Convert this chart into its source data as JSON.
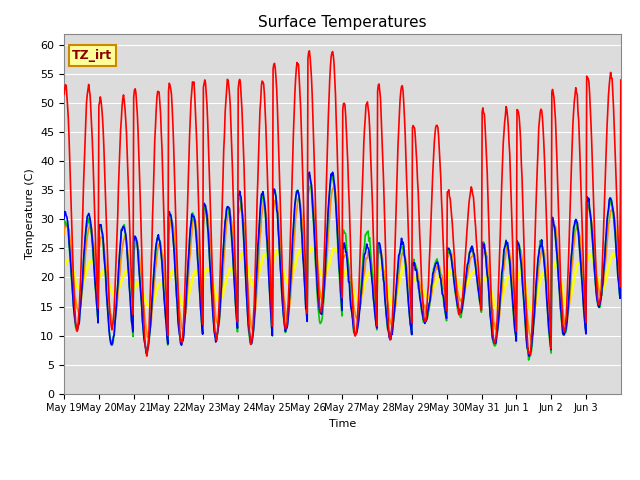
{
  "title": "Surface Temperatures",
  "ylabel": "Temperature (C)",
  "xlabel": "Time",
  "ylim": [
    0,
    62
  ],
  "yticks": [
    0,
    5,
    10,
    15,
    20,
    25,
    30,
    35,
    40,
    45,
    50,
    55,
    60
  ],
  "bg_color": "#dcdcdc",
  "fig_color": "#ffffff",
  "annotation_text": "TZ_irt",
  "annotation_bg": "#ffff99",
  "annotation_border": "#cc8800",
  "series": {
    "IRT Ground": {
      "color": "#ff0000",
      "lw": 1.2
    },
    "IRT Canopy": {
      "color": "#0000ff",
      "lw": 1.2
    },
    "Floor Tair": {
      "color": "#00cc00",
      "lw": 1.2
    },
    "Tower TAir": {
      "color": "#ff8800",
      "lw": 1.2
    },
    "TsoilD_2cm": {
      "color": "#ffff00",
      "lw": 1.8
    }
  },
  "n_days": 16,
  "irt_ground_peaks": [
    53,
    51,
    52.5,
    53.5,
    54,
    54,
    57,
    59,
    50,
    53,
    46.5,
    35,
    49,
    49,
    52.5,
    55
  ],
  "irt_ground_mins": [
    11,
    11,
    6.5,
    8.5,
    9,
    8.5,
    11,
    14,
    10,
    9.5,
    12.5,
    14,
    8.5,
    6.5,
    10.5,
    15
  ],
  "irt_canopy_peaks": [
    31,
    29,
    27,
    31,
    32.5,
    34.5,
    35,
    38,
    25.5,
    26,
    22.5,
    25,
    26,
    26,
    30,
    33.5
  ],
  "irt_canopy_mins": [
    11,
    8.5,
    7,
    8.5,
    9.5,
    8.5,
    11,
    13.5,
    10,
    9.5,
    12.5,
    14,
    8.5,
    6.5,
    10,
    15
  ],
  "floor_peaks": [
    30,
    29,
    27,
    31,
    32,
    34,
    35,
    37.5,
    28,
    25.5,
    23,
    25,
    26,
    26,
    29.5,
    33
  ],
  "floor_mins": [
    11,
    8.5,
    7,
    8.5,
    9.5,
    8.5,
    11,
    12,
    10,
    9.5,
    12,
    13.5,
    8,
    6,
    10,
    15
  ],
  "tower_peaks": [
    29,
    27,
    26,
    30,
    31.5,
    32.5,
    33.5,
    36,
    24,
    24.5,
    22,
    24,
    25,
    25,
    29,
    32
  ],
  "tower_mins": [
    14,
    12,
    10,
    11,
    12,
    11,
    13,
    16,
    13,
    12,
    14,
    16,
    11,
    10,
    12,
    17
  ],
  "soil_peaks": [
    23,
    21,
    19,
    21,
    21.5,
    24,
    24.5,
    25,
    21,
    22,
    20,
    21,
    20,
    21,
    22.5,
    24
  ],
  "soil_mins": [
    18,
    17,
    15,
    15,
    16,
    18.5,
    19,
    20,
    16,
    15,
    16.5,
    18,
    14.5,
    14,
    15,
    18
  ],
  "day_labels": [
    "May 19",
    "May 20",
    "May 21",
    "May 22",
    "May 23",
    "May 24",
    "May 25",
    "May 26",
    "May 27",
    "May 28",
    "May 29",
    "May 30",
    "May 31",
    "Jun 1",
    "Jun 2",
    "Jun 3"
  ]
}
